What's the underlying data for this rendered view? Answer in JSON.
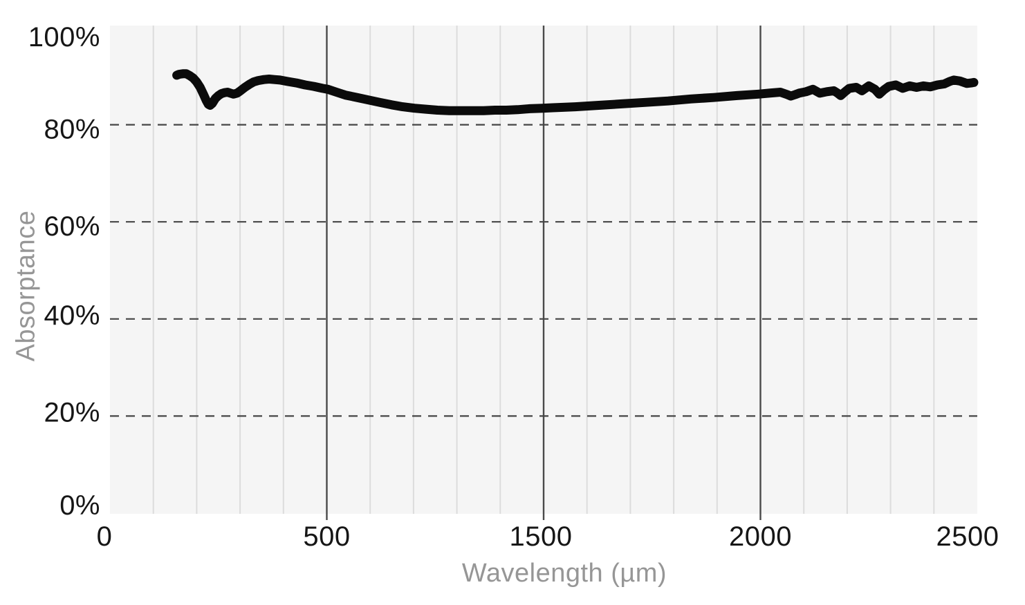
{
  "chart_data": {
    "type": "line",
    "title": "",
    "xlabel": "Wavelength (µm)",
    "ylabel": "Absorptance",
    "x_tick_labels": [
      "0",
      "500",
      "1500",
      "2000",
      "2500"
    ],
    "x_tick_values": [
      0,
      500,
      1500,
      2000,
      2500
    ],
    "x_ticks_evenly_spaced": true,
    "x_minor_divisions_per_interval": 5,
    "x_major_gridline_values": [
      500,
      1500,
      2000
    ],
    "y_tick_labels": [
      "100%",
      "80%",
      "60%",
      "40%",
      "20%",
      "0%"
    ],
    "y_tick_values": [
      100,
      80,
      60,
      40,
      20,
      0
    ],
    "ylim": [
      0,
      100
    ],
    "y_unit": "%",
    "grid": {
      "horizontal_style": "dashed",
      "horizontal_values": [
        20,
        40,
        60,
        80
      ],
      "vertical_minor": true,
      "legend": "none"
    },
    "series": [
      {
        "name": "absorptance",
        "color": "#0b0b0b",
        "points": [
          [
            154,
            90.2
          ],
          [
            160,
            90.4
          ],
          [
            168,
            90.5
          ],
          [
            176,
            90.5
          ],
          [
            184,
            90.1
          ],
          [
            192,
            89.6
          ],
          [
            200,
            88.8
          ],
          [
            208,
            87.7
          ],
          [
            216,
            86.2
          ],
          [
            222,
            85.0
          ],
          [
            227,
            84.2
          ],
          [
            231,
            84.0
          ],
          [
            236,
            84.4
          ],
          [
            243,
            85.4
          ],
          [
            250,
            86.0
          ],
          [
            257,
            86.4
          ],
          [
            264,
            86.6
          ],
          [
            271,
            86.7
          ],
          [
            278,
            86.5
          ],
          [
            285,
            86.3
          ],
          [
            293,
            86.5
          ],
          [
            301,
            87.0
          ],
          [
            311,
            87.7
          ],
          [
            321,
            88.3
          ],
          [
            331,
            88.8
          ],
          [
            342,
            89.1
          ],
          [
            355,
            89.3
          ],
          [
            367,
            89.4
          ],
          [
            379,
            89.3
          ],
          [
            392,
            89.2
          ],
          [
            410,
            88.9
          ],
          [
            430,
            88.6
          ],
          [
            450,
            88.2
          ],
          [
            470,
            87.9
          ],
          [
            490,
            87.5
          ],
          [
            505,
            87.3
          ],
          [
            545,
            86.7
          ],
          [
            586,
            86.1
          ],
          [
            640,
            85.6
          ],
          [
            691,
            85.1
          ],
          [
            745,
            84.6
          ],
          [
            799,
            84.1
          ],
          [
            850,
            83.7
          ],
          [
            904,
            83.4
          ],
          [
            957,
            83.2
          ],
          [
            1010,
            83.0
          ],
          [
            1065,
            82.9
          ],
          [
            1118,
            82.9
          ],
          [
            1170,
            82.9
          ],
          [
            1223,
            82.9
          ],
          [
            1275,
            83.0
          ],
          [
            1328,
            83.0
          ],
          [
            1380,
            83.1
          ],
          [
            1436,
            83.3
          ],
          [
            1494,
            83.4
          ],
          [
            1521,
            83.5
          ],
          [
            1573,
            83.7
          ],
          [
            1627,
            84.0
          ],
          [
            1680,
            84.3
          ],
          [
            1733,
            84.6
          ],
          [
            1787,
            84.9
          ],
          [
            1839,
            85.3
          ],
          [
            1892,
            85.6
          ],
          [
            1946,
            86.0
          ],
          [
            1995,
            86.3
          ],
          [
            2020,
            86.5
          ],
          [
            2046,
            86.7
          ],
          [
            2062,
            86.2
          ],
          [
            2070,
            85.9
          ],
          [
            2080,
            86.2
          ],
          [
            2089,
            86.5
          ],
          [
            2105,
            86.8
          ],
          [
            2121,
            87.3
          ],
          [
            2137,
            86.5
          ],
          [
            2153,
            86.8
          ],
          [
            2169,
            87.0
          ],
          [
            2178,
            86.5
          ],
          [
            2185,
            86.0
          ],
          [
            2195,
            86.8
          ],
          [
            2205,
            87.5
          ],
          [
            2221,
            87.7
          ],
          [
            2234,
            87.0
          ],
          [
            2250,
            88.0
          ],
          [
            2264,
            87.3
          ],
          [
            2274,
            86.3
          ],
          [
            2285,
            87.2
          ],
          [
            2296,
            87.9
          ],
          [
            2312,
            88.2
          ],
          [
            2328,
            87.5
          ],
          [
            2344,
            88.0
          ],
          [
            2360,
            87.7
          ],
          [
            2376,
            88.0
          ],
          [
            2392,
            87.8
          ],
          [
            2408,
            88.2
          ],
          [
            2424,
            88.4
          ],
          [
            2436,
            88.9
          ],
          [
            2446,
            89.2
          ],
          [
            2460,
            89.0
          ],
          [
            2476,
            88.5
          ],
          [
            2486,
            88.6
          ],
          [
            2492,
            88.7
          ]
        ]
      }
    ]
  },
  "colors": {
    "background": "#ffffff",
    "plot_background": "#f5f5f5",
    "minor_gridline": "#dcdcdc",
    "major_gridline": "#4a4a4a",
    "dashed_gridline": "#454545",
    "tick_label": "#161616",
    "axis_title": "#969696",
    "line": "#0b0b0b"
  }
}
